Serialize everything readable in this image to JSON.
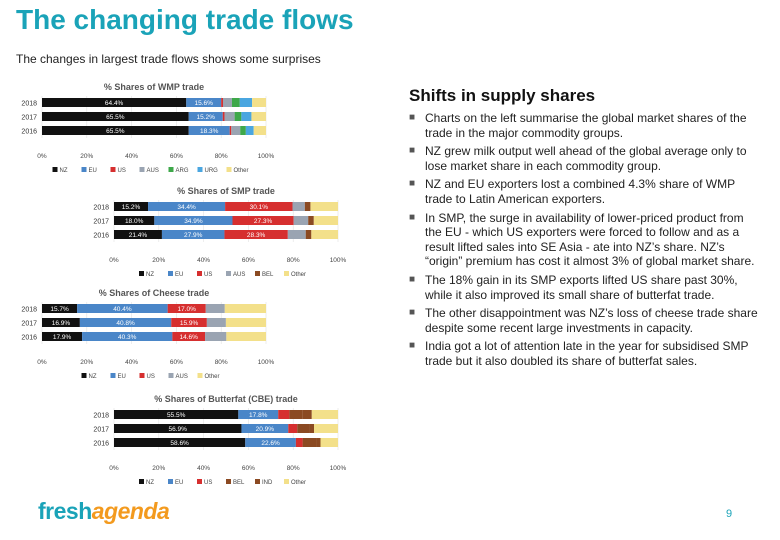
{
  "header": {
    "title": "The changing trade flows",
    "subtitle": "The changes in largest trade flows shows some surprises"
  },
  "right": {
    "heading": "Shifts in supply shares",
    "bullets": [
      "Charts on the left summarise the global market shares of the trade in the major commodity groups.",
      "NZ grew milk output well ahead of the global average only to lose market share in each commodity group.",
      "NZ and EU exporters lost a combined 4.3% share of WMP trade to Latin American exporters.",
      "In SMP, the surge in availability of lower-priced product from the EU - which US exporters were forced to follow and as a result lifted sales into SE Asia - ate into NZ’s share. NZ’s “origin” premium has cost it almost 3% of global market share.",
      "The 18% gain in its SMP exports lifted US share past 30%, while it also improved its small share of butterfat trade.",
      "The other disappointment was NZ’s loss of cheese trade share despite some recent large investments in capacity.",
      "India got a lot of attention late in the year for subsidised SMP trade but it also doubled its share of butterfat sales."
    ]
  },
  "footer": {
    "logo_fresh": "fresh",
    "logo_agenda": "agenda",
    "page_number": "9"
  },
  "colors": {
    "NZ": "#111111",
    "EU": "#4a86c8",
    "US": "#d62f2f",
    "AUS": "#9aa4b2",
    "ARG": "#3ea84a",
    "URG": "#4aa6e0",
    "BEL": "#8b4a22",
    "Other": "#f3e08a",
    "IND": "#8b4a22"
  },
  "chart_data": [
    {
      "type": "bar",
      "stacked": true,
      "orientation": "horizontal",
      "percent": true,
      "title": "% Shares of WMP trade",
      "categories": [
        "2018",
        "2017",
        "2016"
      ],
      "xlim": [
        0,
        100
      ],
      "xticks": [
        "0%",
        "20%",
        "40%",
        "60%",
        "80%",
        "100%"
      ],
      "legend": "bottom",
      "series": [
        {
          "name": "NZ",
          "values": [
            64.4,
            65.5,
            65.5
          ],
          "labels": [
            "64.4%",
            "65.5%",
            "65.5%"
          ]
        },
        {
          "name": "EU",
          "values": [
            15.6,
            15.2,
            18.3
          ],
          "labels": [
            "15.6%",
            "15.2%",
            "18.3%"
          ]
        },
        {
          "name": "US",
          "values": [
            0.8,
            0.8,
            0.7
          ],
          "labels": [
            "",
            "",
            ""
          ]
        },
        {
          "name": "AUS",
          "values": [
            4.0,
            4.5,
            4.0
          ],
          "labels": [
            "",
            "",
            ""
          ]
        },
        {
          "name": "ARG",
          "values": [
            3.5,
            3.0,
            2.5
          ],
          "labels": [
            "",
            "",
            ""
          ]
        },
        {
          "name": "URG",
          "values": [
            5.5,
            4.5,
            3.5
          ],
          "labels": [
            "",
            "",
            ""
          ]
        },
        {
          "name": "Other",
          "values": [
            6.2,
            6.5,
            5.5
          ],
          "labels": [
            "",
            "",
            ""
          ]
        }
      ]
    },
    {
      "type": "bar",
      "stacked": true,
      "orientation": "horizontal",
      "percent": true,
      "title": "% Shares of SMP trade",
      "categories": [
        "2018",
        "2017",
        "2016"
      ],
      "xlim": [
        0,
        100
      ],
      "xticks": [
        "0%",
        "20%",
        "40%",
        "60%",
        "80%",
        "100%"
      ],
      "legend": "bottom",
      "series": [
        {
          "name": "NZ",
          "values": [
            15.2,
            18.0,
            21.4
          ],
          "labels": [
            "15.2%",
            "18.0%",
            "21.4%"
          ]
        },
        {
          "name": "EU",
          "values": [
            34.4,
            34.9,
            27.9
          ],
          "labels": [
            "34.4%",
            "34.9%",
            "27.9%"
          ]
        },
        {
          "name": "US",
          "values": [
            30.1,
            27.3,
            28.3
          ],
          "labels": [
            "30.1%",
            "27.3%",
            "28.3%"
          ]
        },
        {
          "name": "AUS",
          "values": [
            5.5,
            6.5,
            8.0
          ],
          "labels": [
            "",
            "",
            ""
          ]
        },
        {
          "name": "BEL",
          "values": [
            2.5,
            2.5,
            2.5
          ],
          "labels": [
            "",
            "",
            ""
          ]
        },
        {
          "name": "Other",
          "values": [
            12.3,
            10.8,
            11.9
          ],
          "labels": [
            "",
            "",
            ""
          ]
        }
      ]
    },
    {
      "type": "bar",
      "stacked": true,
      "orientation": "horizontal",
      "percent": true,
      "title": "% Shares of Cheese trade",
      "categories": [
        "2018",
        "2017",
        "2016"
      ],
      "xlim": [
        0,
        100
      ],
      "xticks": [
        "0%",
        "20%",
        "40%",
        "60%",
        "80%",
        "100%"
      ],
      "legend": "bottom",
      "series": [
        {
          "name": "NZ",
          "values": [
            15.7,
            16.9,
            17.9
          ],
          "labels": [
            "15.7%",
            "16.9%",
            "17.9%"
          ]
        },
        {
          "name": "EU",
          "values": [
            40.4,
            40.8,
            40.3
          ],
          "labels": [
            "40.4%",
            "40.8%",
            "40.3%"
          ]
        },
        {
          "name": "US",
          "values": [
            17.0,
            15.9,
            14.6
          ],
          "labels": [
            "17.0%",
            "15.9%",
            "14.6%"
          ]
        },
        {
          "name": "AUS",
          "values": [
            8.5,
            8.5,
            9.5
          ],
          "labels": [
            "",
            "",
            ""
          ]
        },
        {
          "name": "Other",
          "values": [
            18.4,
            17.9,
            17.7
          ],
          "labels": [
            "",
            "",
            ""
          ]
        }
      ]
    },
    {
      "type": "bar",
      "stacked": true,
      "orientation": "horizontal",
      "percent": true,
      "title": "% Shares of Butterfat (CBE) trade",
      "categories": [
        "2018",
        "2017",
        "2016"
      ],
      "xlim": [
        0,
        100
      ],
      "xticks": [
        "0%",
        "20%",
        "40%",
        "60%",
        "80%",
        "100%"
      ],
      "legend": "bottom",
      "series": [
        {
          "name": "NZ",
          "values": [
            55.5,
            56.9,
            58.6
          ],
          "labels": [
            "55.5%",
            "56.9%",
            "58.6%"
          ]
        },
        {
          "name": "EU",
          "values": [
            17.8,
            20.9,
            22.6
          ],
          "labels": [
            "17.8%",
            "20.9%",
            "22.6%"
          ]
        },
        {
          "name": "US",
          "values": [
            5.0,
            4.0,
            3.0
          ],
          "labels": [
            "",
            "",
            ""
          ]
        },
        {
          "name": "BEL",
          "values": [
            6.0,
            5.5,
            6.0
          ],
          "labels": [
            "",
            "",
            ""
          ]
        },
        {
          "name": "IND",
          "values": [
            4.0,
            2.0,
            2.0
          ],
          "labels": [
            "",
            "",
            ""
          ]
        },
        {
          "name": "Other",
          "values": [
            11.7,
            10.7,
            7.8
          ],
          "labels": [
            "",
            "",
            ""
          ]
        }
      ]
    }
  ]
}
